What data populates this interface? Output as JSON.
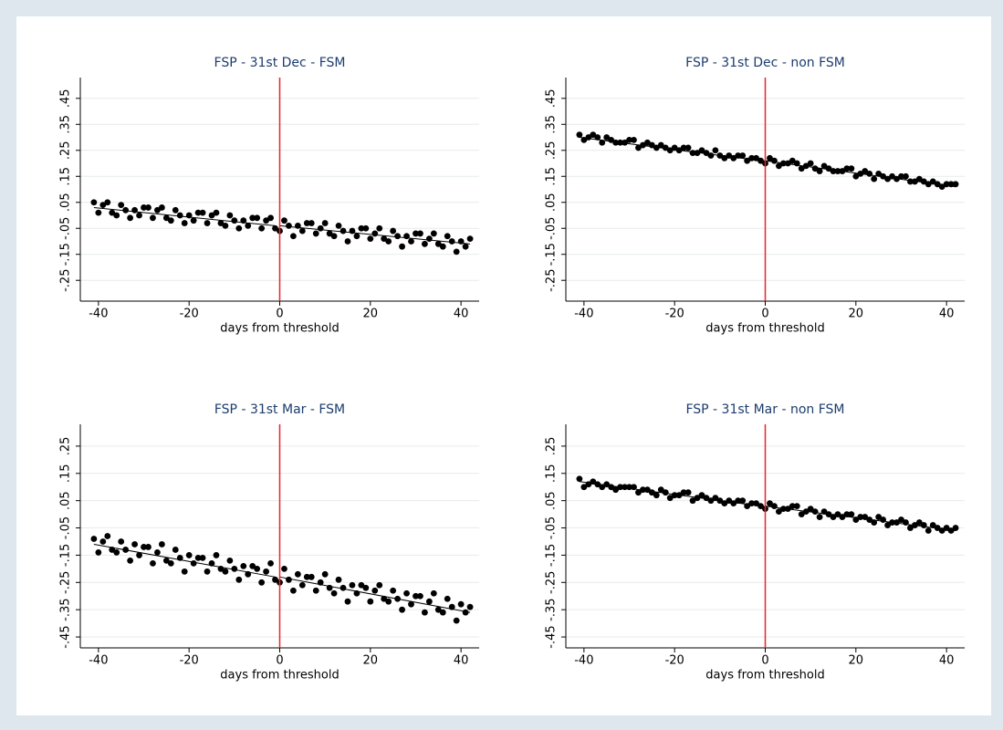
{
  "chart_data": [
    {
      "type": "scatter",
      "title": "FSP - 31st Dec - FSM",
      "xlabel": "days from threshold",
      "color": "#000000",
      "grid": true,
      "threshold": 0,
      "threshold_color": "#e8262a",
      "xlim": [
        -44,
        44
      ],
      "ylim": [
        -0.33,
        0.53
      ],
      "xticks": [
        -40,
        -20,
        0,
        20,
        40
      ],
      "yticks": [
        {
          "value": -0.25,
          "label": "-.25"
        },
        {
          "value": -0.15,
          "label": "-.15"
        },
        {
          "value": -0.05,
          "label": "-.05"
        },
        {
          "value": 0.05,
          "label": ".05"
        },
        {
          "value": 0.15,
          "label": ".15"
        },
        {
          "value": 0.25,
          "label": ".25"
        },
        {
          "value": 0.35,
          "label": ".35"
        },
        {
          "value": 0.45,
          "label": ".45"
        }
      ],
      "x": [
        -41,
        -40,
        -39,
        -38,
        -37,
        -36,
        -35,
        -34,
        -33,
        -32,
        -31,
        -30,
        -29,
        -28,
        -27,
        -26,
        -25,
        -24,
        -23,
        -22,
        -21,
        -20,
        -19,
        -18,
        -17,
        -16,
        -15,
        -14,
        -13,
        -12,
        -11,
        -10,
        -9,
        -8,
        -7,
        -6,
        -5,
        -4,
        -3,
        -2,
        -1,
        0,
        1,
        2,
        3,
        4,
        5,
        6,
        7,
        8,
        9,
        10,
        11,
        12,
        13,
        14,
        15,
        16,
        17,
        18,
        19,
        20,
        21,
        22,
        23,
        24,
        25,
        26,
        27,
        28,
        29,
        30,
        31,
        32,
        33,
        34,
        35,
        36,
        37,
        38,
        39,
        40,
        41,
        42
      ],
      "values": [
        0.05,
        0.01,
        0.04,
        0.05,
        0.01,
        0,
        0.04,
        0.02,
        -0.01,
        0.02,
        0,
        0.03,
        0.03,
        -0.01,
        0.02,
        0.03,
        -0.01,
        -0.02,
        0.02,
        0,
        -0.03,
        0,
        -0.02,
        0.01,
        0.01,
        -0.03,
        0,
        0.01,
        -0.03,
        -0.04,
        0,
        -0.02,
        -0.05,
        -0.02,
        -0.04,
        -0.01,
        -0.01,
        -0.05,
        -0.02,
        -0.01,
        -0.05,
        -0.06,
        -0.02,
        -0.04,
        -0.08,
        -0.04,
        -0.06,
        -0.03,
        -0.03,
        -0.07,
        -0.05,
        -0.03,
        -0.07,
        -0.08,
        -0.04,
        -0.06,
        -0.1,
        -0.06,
        -0.08,
        -0.05,
        -0.05,
        -0.09,
        -0.07,
        -0.05,
        -0.09,
        -0.1,
        -0.06,
        -0.08,
        -0.12,
        -0.08,
        -0.1,
        -0.07,
        -0.07,
        -0.11,
        -0.09,
        -0.07,
        -0.11,
        -0.12,
        -0.08,
        -0.1,
        -0.14,
        -0.1,
        -0.12,
        -0.09
      ],
      "fit_lines": [
        {
          "x": [
            -41,
            -1
          ],
          "values": [
            0.03,
            -0.04
          ]
        },
        {
          "x": [
            0,
            42
          ],
          "values": [
            -0.04,
            -0.11
          ]
        }
      ]
    },
    {
      "type": "scatter",
      "title": "FSP - 31st Dec - non FSM",
      "xlabel": "days from threshold",
      "color": "#000000",
      "grid": true,
      "threshold": 0,
      "threshold_color": "#e8262a",
      "xlim": [
        -44,
        44
      ],
      "ylim": [
        -0.33,
        0.53
      ],
      "xticks": [
        -40,
        -20,
        0,
        20,
        40
      ],
      "yticks": [
        {
          "value": -0.25,
          "label": "-.25"
        },
        {
          "value": -0.15,
          "label": "-.15"
        },
        {
          "value": -0.05,
          "label": "-.05"
        },
        {
          "value": 0.05,
          "label": ".05"
        },
        {
          "value": 0.15,
          "label": ".15"
        },
        {
          "value": 0.25,
          "label": ".25"
        },
        {
          "value": 0.35,
          "label": ".35"
        },
        {
          "value": 0.45,
          "label": ".45"
        }
      ],
      "x": [
        -41,
        -40,
        -39,
        -38,
        -37,
        -36,
        -35,
        -34,
        -33,
        -32,
        -31,
        -30,
        -29,
        -28,
        -27,
        -26,
        -25,
        -24,
        -23,
        -22,
        -21,
        -20,
        -19,
        -18,
        -17,
        -16,
        -15,
        -14,
        -13,
        -12,
        -11,
        -10,
        -9,
        -8,
        -7,
        -6,
        -5,
        -4,
        -3,
        -2,
        -1,
        0,
        1,
        2,
        3,
        4,
        5,
        6,
        7,
        8,
        9,
        10,
        11,
        12,
        13,
        14,
        15,
        16,
        17,
        18,
        19,
        20,
        21,
        22,
        23,
        24,
        25,
        26,
        27,
        28,
        29,
        30,
        31,
        32,
        33,
        34,
        35,
        36,
        37,
        38,
        39,
        40,
        41,
        42
      ],
      "values": [
        0.31,
        0.29,
        0.3,
        0.31,
        0.3,
        0.28,
        0.3,
        0.29,
        0.28,
        0.28,
        0.28,
        0.29,
        0.29,
        0.26,
        0.27,
        0.28,
        0.27,
        0.26,
        0.27,
        0.26,
        0.25,
        0.26,
        0.25,
        0.26,
        0.26,
        0.24,
        0.24,
        0.25,
        0.24,
        0.23,
        0.25,
        0.23,
        0.22,
        0.23,
        0.22,
        0.23,
        0.23,
        0.21,
        0.22,
        0.22,
        0.21,
        0.2,
        0.22,
        0.21,
        0.19,
        0.2,
        0.2,
        0.21,
        0.2,
        0.18,
        0.19,
        0.2,
        0.18,
        0.17,
        0.19,
        0.18,
        0.17,
        0.17,
        0.17,
        0.18,
        0.18,
        0.15,
        0.16,
        0.17,
        0.16,
        0.14,
        0.16,
        0.15,
        0.14,
        0.15,
        0.14,
        0.15,
        0.15,
        0.13,
        0.13,
        0.14,
        0.13,
        0.12,
        0.13,
        0.12,
        0.11,
        0.12,
        0.12,
        0.12
      ],
      "fit_lines": [
        {
          "x": [
            -41,
            -1
          ],
          "values": [
            0.3,
            0.21
          ]
        },
        {
          "x": [
            0,
            42
          ],
          "values": [
            0.21,
            0.11
          ]
        }
      ]
    },
    {
      "type": "scatter",
      "title": "FSP - 31st Mar - FSM",
      "xlabel": "days from threshold",
      "color": "#000000",
      "grid": true,
      "threshold": 0,
      "threshold_color": "#e8262a",
      "xlim": [
        -44,
        44
      ],
      "ylim": [
        -0.49,
        0.33
      ],
      "xticks": [
        -40,
        -20,
        0,
        20,
        40
      ],
      "yticks": [
        {
          "value": -0.45,
          "label": "-.45"
        },
        {
          "value": -0.35,
          "label": "-.35"
        },
        {
          "value": -0.25,
          "label": "-.25"
        },
        {
          "value": -0.15,
          "label": "-.15"
        },
        {
          "value": -0.05,
          "label": "-.05"
        },
        {
          "value": 0.05,
          "label": ".05"
        },
        {
          "value": 0.15,
          "label": ".15"
        },
        {
          "value": 0.25,
          "label": ".25"
        }
      ],
      "x": [
        -41,
        -40,
        -39,
        -38,
        -37,
        -36,
        -35,
        -34,
        -33,
        -32,
        -31,
        -30,
        -29,
        -28,
        -27,
        -26,
        -25,
        -24,
        -23,
        -22,
        -21,
        -20,
        -19,
        -18,
        -17,
        -16,
        -15,
        -14,
        -13,
        -12,
        -11,
        -10,
        -9,
        -8,
        -7,
        -6,
        -5,
        -4,
        -3,
        -2,
        -1,
        0,
        1,
        2,
        3,
        4,
        5,
        6,
        7,
        8,
        9,
        10,
        11,
        12,
        13,
        14,
        15,
        16,
        17,
        18,
        19,
        20,
        21,
        22,
        23,
        24,
        25,
        26,
        27,
        28,
        29,
        30,
        31,
        32,
        33,
        34,
        35,
        36,
        37,
        38,
        39,
        40,
        41,
        42
      ],
      "values": [
        -0.09,
        -0.14,
        -0.1,
        -0.08,
        -0.13,
        -0.14,
        -0.1,
        -0.13,
        -0.17,
        -0.11,
        -0.15,
        -0.12,
        -0.12,
        -0.18,
        -0.14,
        -0.11,
        -0.17,
        -0.18,
        -0.13,
        -0.16,
        -0.21,
        -0.15,
        -0.18,
        -0.16,
        -0.16,
        -0.21,
        -0.18,
        -0.15,
        -0.2,
        -0.21,
        -0.17,
        -0.2,
        -0.24,
        -0.19,
        -0.22,
        -0.19,
        -0.2,
        -0.25,
        -0.21,
        -0.18,
        -0.24,
        -0.25,
        -0.2,
        -0.24,
        -0.28,
        -0.22,
        -0.26,
        -0.23,
        -0.23,
        -0.28,
        -0.25,
        -0.22,
        -0.27,
        -0.29,
        -0.24,
        -0.27,
        -0.32,
        -0.26,
        -0.29,
        -0.26,
        -0.27,
        -0.32,
        -0.28,
        -0.26,
        -0.31,
        -0.32,
        -0.28,
        -0.31,
        -0.35,
        -0.29,
        -0.33,
        -0.3,
        -0.3,
        -0.36,
        -0.32,
        -0.29,
        -0.35,
        -0.36,
        -0.31,
        -0.34,
        -0.39,
        -0.33,
        -0.36,
        -0.34
      ],
      "fit_lines": [
        {
          "x": [
            -41,
            -1
          ],
          "values": [
            -0.11,
            -0.23
          ]
        },
        {
          "x": [
            0,
            42
          ],
          "values": [
            -0.23,
            -0.36
          ]
        }
      ]
    },
    {
      "type": "scatter",
      "title": "FSP - 31st Mar - non FSM",
      "xlabel": "days from threshold",
      "color": "#000000",
      "grid": true,
      "threshold": 0,
      "threshold_color": "#e8262a",
      "xlim": [
        -44,
        44
      ],
      "ylim": [
        -0.49,
        0.33
      ],
      "xticks": [
        -40,
        -20,
        0,
        20,
        40
      ],
      "yticks": [
        {
          "value": -0.45,
          "label": "-.45"
        },
        {
          "value": -0.35,
          "label": "-.35"
        },
        {
          "value": -0.25,
          "label": "-.25"
        },
        {
          "value": -0.15,
          "label": "-.15"
        },
        {
          "value": -0.05,
          "label": "-.05"
        },
        {
          "value": 0.05,
          "label": ".05"
        },
        {
          "value": 0.15,
          "label": ".15"
        },
        {
          "value": 0.25,
          "label": ".25"
        }
      ],
      "x": [
        -41,
        -40,
        -39,
        -38,
        -37,
        -36,
        -35,
        -34,
        -33,
        -32,
        -31,
        -30,
        -29,
        -28,
        -27,
        -26,
        -25,
        -24,
        -23,
        -22,
        -21,
        -20,
        -19,
        -18,
        -17,
        -16,
        -15,
        -14,
        -13,
        -12,
        -11,
        -10,
        -9,
        -8,
        -7,
        -6,
        -5,
        -4,
        -3,
        -2,
        -1,
        0,
        1,
        2,
        3,
        4,
        5,
        6,
        7,
        8,
        9,
        10,
        11,
        12,
        13,
        14,
        15,
        16,
        17,
        18,
        19,
        20,
        21,
        22,
        23,
        24,
        25,
        26,
        27,
        28,
        29,
        30,
        31,
        32,
        33,
        34,
        35,
        36,
        37,
        38,
        39,
        40,
        41,
        42
      ],
      "values": [
        0.13,
        0.1,
        0.11,
        0.12,
        0.11,
        0.1,
        0.11,
        0.1,
        0.09,
        0.1,
        0.1,
        0.1,
        0.1,
        0.08,
        0.09,
        0.09,
        0.08,
        0.07,
        0.09,
        0.08,
        0.06,
        0.07,
        0.07,
        0.08,
        0.08,
        0.05,
        0.06,
        0.07,
        0.06,
        0.05,
        0.06,
        0.05,
        0.04,
        0.05,
        0.04,
        0.05,
        0.05,
        0.03,
        0.04,
        0.04,
        0.03,
        0.02,
        0.04,
        0.03,
        0.01,
        0.02,
        0.02,
        0.03,
        0.03,
        0,
        0.01,
        0.02,
        0.01,
        -0.01,
        0.01,
        0,
        -0.01,
        0,
        -0.01,
        0,
        0,
        -0.02,
        -0.01,
        -0.01,
        -0.02,
        -0.03,
        -0.01,
        -0.02,
        -0.04,
        -0.03,
        -0.03,
        -0.02,
        -0.03,
        -0.05,
        -0.04,
        -0.03,
        -0.04,
        -0.06,
        -0.04,
        -0.05,
        -0.06,
        -0.05,
        -0.06,
        -0.05
      ],
      "fit_lines": [
        {
          "x": [
            -41,
            -1
          ],
          "values": [
            0.12,
            0.03
          ]
        },
        {
          "x": [
            0,
            42
          ],
          "values": [
            0.03,
            -0.06
          ]
        }
      ]
    }
  ]
}
